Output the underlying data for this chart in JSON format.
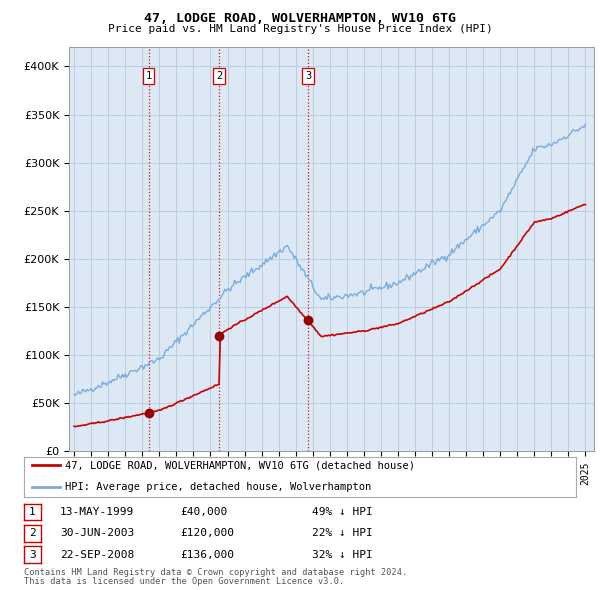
{
  "title": "47, LODGE ROAD, WOLVERHAMPTON, WV10 6TG",
  "subtitle": "Price paid vs. HM Land Registry's House Price Index (HPI)",
  "legend_line1": "47, LODGE ROAD, WOLVERHAMPTON, WV10 6TG (detached house)",
  "legend_line2": "HPI: Average price, detached house, Wolverhampton",
  "footnote1": "Contains HM Land Registry data © Crown copyright and database right 2024.",
  "footnote2": "This data is licensed under the Open Government Licence v3.0.",
  "transactions": [
    {
      "num": 1,
      "date": "13-MAY-1999",
      "price": "£40,000",
      "hpi": "49% ↓ HPI"
    },
    {
      "num": 2,
      "date": "30-JUN-2003",
      "price": "£120,000",
      "hpi": "22% ↓ HPI"
    },
    {
      "num": 3,
      "date": "22-SEP-2008",
      "price": "£136,000",
      "hpi": "32% ↓ HPI"
    }
  ],
  "transaction_years": [
    1999.37,
    2003.5,
    2008.72
  ],
  "transaction_prices": [
    40000,
    120000,
    136000
  ],
  "red_line_color": "#cc0000",
  "blue_line_color": "#7aabdc",
  "vline_color": "#cc0000",
  "chart_bg": "#dce9f5",
  "ylim": [
    0,
    420000
  ],
  "yticks": [
    0,
    50000,
    100000,
    150000,
    200000,
    250000,
    300000,
    350000,
    400000
  ],
  "background_color": "#ffffff",
  "grid_color": "#b8cfe0"
}
